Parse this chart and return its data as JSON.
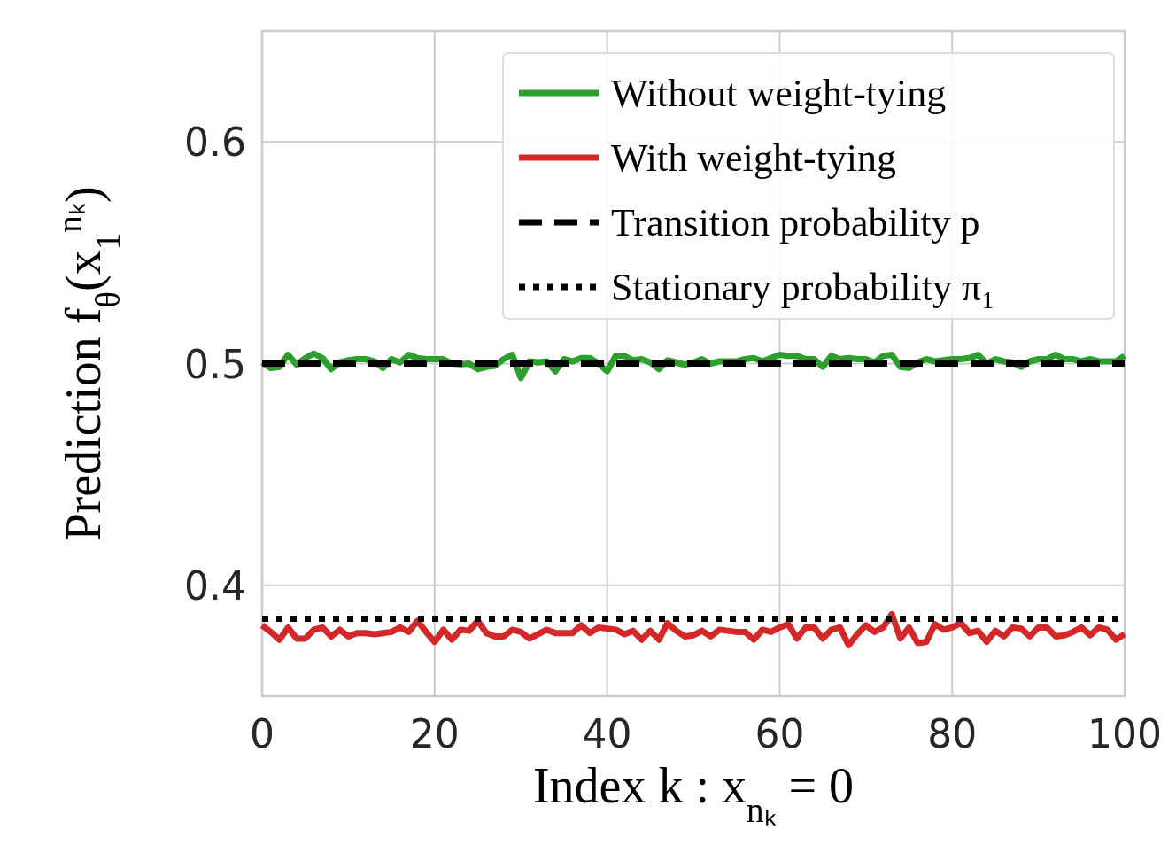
{
  "chart_data": {
    "type": "line",
    "xlabel": "Index k : x$_{nₖ}$ = 0",
    "ylabel": "Prediction f$_{θ}$(x$_{1}$$^{nₖ}$)",
    "x": [
      0,
      1,
      2,
      3,
      4,
      5,
      6,
      7,
      8,
      9,
      10,
      11,
      12,
      13,
      14,
      15,
      16,
      17,
      18,
      19,
      20,
      21,
      22,
      23,
      24,
      25,
      26,
      27,
      28,
      29,
      30,
      31,
      32,
      33,
      34,
      35,
      36,
      37,
      38,
      39,
      40,
      41,
      42,
      43,
      44,
      45,
      46,
      47,
      48,
      49,
      50,
      51,
      52,
      53,
      54,
      55,
      56,
      57,
      58,
      59,
      60,
      61,
      62,
      63,
      64,
      65,
      66,
      67,
      68,
      69,
      70,
      71,
      72,
      73,
      74,
      75,
      76,
      77,
      78,
      79,
      80,
      81,
      82,
      83,
      84,
      85,
      86,
      87,
      88,
      89,
      90,
      91,
      92,
      93,
      94,
      95,
      96,
      97,
      98,
      99,
      100
    ],
    "xlim": [
      0,
      100
    ],
    "xticks": [
      0,
      20,
      40,
      60,
      80,
      100
    ],
    "ylim": [
      0.35,
      0.65
    ],
    "yticks": [
      0.4,
      0.5,
      0.6
    ],
    "grid": true,
    "legend": "top right",
    "series": [
      {
        "name": "Without weight-tying",
        "color": "#2ca02c",
        "line_style": "solid",
        "values": [
          0.5005,
          0.498,
          0.4985,
          0.504,
          0.4995,
          0.5025,
          0.5045,
          0.5025,
          0.4975,
          0.5005,
          0.5015,
          0.502,
          0.502,
          0.501,
          0.498,
          0.502,
          0.5005,
          0.504,
          0.5025,
          0.502,
          0.502,
          0.502,
          0.5,
          0.4997,
          0.5,
          0.4975,
          0.4985,
          0.499,
          0.502,
          0.504,
          0.4935,
          0.501,
          0.5005,
          0.501,
          0.4965,
          0.502,
          0.501,
          0.5025,
          0.5025,
          0.5,
          0.4965,
          0.5035,
          0.5035,
          0.5015,
          0.502,
          0.5005,
          0.4975,
          0.5015,
          0.5005,
          0.4995,
          0.5005,
          0.502,
          0.5,
          0.501,
          0.501,
          0.501,
          0.502,
          0.5025,
          0.501,
          0.5025,
          0.504,
          0.5035,
          0.5035,
          0.502,
          0.502,
          0.4985,
          0.5035,
          0.502,
          0.5025,
          0.502,
          0.502,
          0.5005,
          0.5035,
          0.504,
          0.4985,
          0.498,
          0.5005,
          0.502,
          0.501,
          0.5015,
          0.502,
          0.502,
          0.5025,
          0.504,
          0.5,
          0.502,
          0.501,
          0.5005,
          0.4985,
          0.501,
          0.502,
          0.502,
          0.504,
          0.502,
          0.502,
          0.501,
          0.502,
          0.501,
          0.501,
          0.501,
          0.5035
        ]
      },
      {
        "name": "With weight-tying",
        "color": "#d62728",
        "line_style": "solid",
        "values": [
          0.382,
          0.379,
          0.3755,
          0.381,
          0.376,
          0.376,
          0.38,
          0.381,
          0.377,
          0.38,
          0.377,
          0.3785,
          0.3785,
          0.378,
          0.3785,
          0.379,
          0.381,
          0.379,
          0.384,
          0.379,
          0.3745,
          0.38,
          0.3755,
          0.38,
          0.3795,
          0.384,
          0.3785,
          0.377,
          0.377,
          0.38,
          0.379,
          0.376,
          0.378,
          0.38,
          0.3785,
          0.3785,
          0.3785,
          0.382,
          0.3785,
          0.381,
          0.3805,
          0.38,
          0.378,
          0.3795,
          0.3755,
          0.3795,
          0.3755,
          0.383,
          0.3795,
          0.377,
          0.3775,
          0.3795,
          0.377,
          0.38,
          0.3795,
          0.379,
          0.379,
          0.3755,
          0.38,
          0.379,
          0.381,
          0.3825,
          0.376,
          0.381,
          0.381,
          0.376,
          0.38,
          0.381,
          0.373,
          0.378,
          0.382,
          0.379,
          0.381,
          0.387,
          0.376,
          0.381,
          0.374,
          0.3745,
          0.3825,
          0.38,
          0.381,
          0.383,
          0.3785,
          0.3795,
          0.3745,
          0.3795,
          0.377,
          0.381,
          0.3805,
          0.377,
          0.381,
          0.381,
          0.377,
          0.3775,
          0.379,
          0.381,
          0.3775,
          0.381,
          0.38,
          0.3755,
          0.378
        ]
      }
    ],
    "ref_lines": [
      {
        "axis": "y",
        "value": 0.5,
        "label": "Transition probability p",
        "color": "#000000",
        "line_style": "dashed"
      },
      {
        "axis": "y",
        "value": 0.385,
        "label": "Stationary probability π₁",
        "color": "#000000",
        "line_style": "dotted"
      }
    ]
  }
}
